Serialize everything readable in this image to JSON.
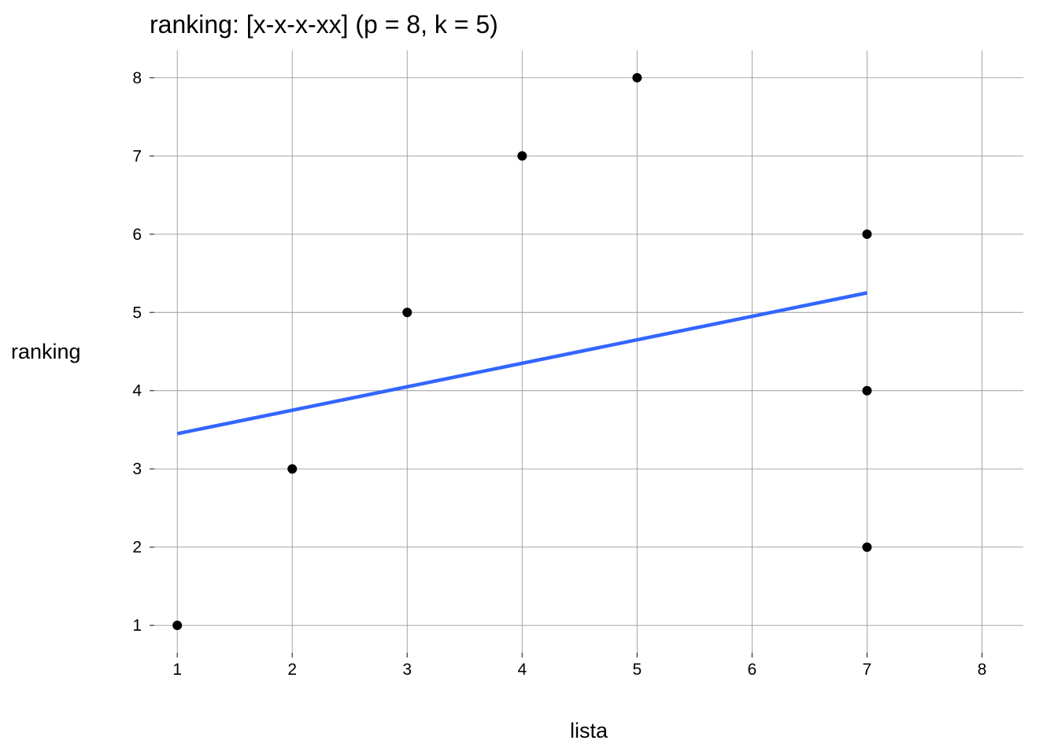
{
  "chart_data": {
    "type": "scatter",
    "title": "ranking: [x-x-x-xx] (p = 8, k = 5)",
    "xlabel": "lista",
    "ylabel": "ranking",
    "xlim": [
      0.8,
      8.36
    ],
    "ylim": [
      0.65,
      8.35
    ],
    "xticks": [
      1,
      2,
      3,
      4,
      5,
      6,
      7,
      8
    ],
    "yticks": [
      1,
      2,
      3,
      4,
      5,
      6,
      7,
      8
    ],
    "grid": true,
    "series": [
      {
        "points": [
          {
            "x": 1,
            "y": 1
          },
          {
            "x": 2,
            "y": 3
          },
          {
            "x": 3,
            "y": 5
          },
          {
            "x": 4,
            "y": 7
          },
          {
            "x": 5,
            "y": 8
          },
          {
            "x": 7,
            "y": 6
          },
          {
            "x": 7,
            "y": 4
          },
          {
            "x": 7,
            "y": 2
          }
        ],
        "color": "#000000"
      }
    ],
    "fit_line": {
      "points": [
        {
          "x": 1,
          "y": 3.45
        },
        {
          "x": 7,
          "y": 5.25
        }
      ],
      "color": "#3366FF"
    }
  }
}
